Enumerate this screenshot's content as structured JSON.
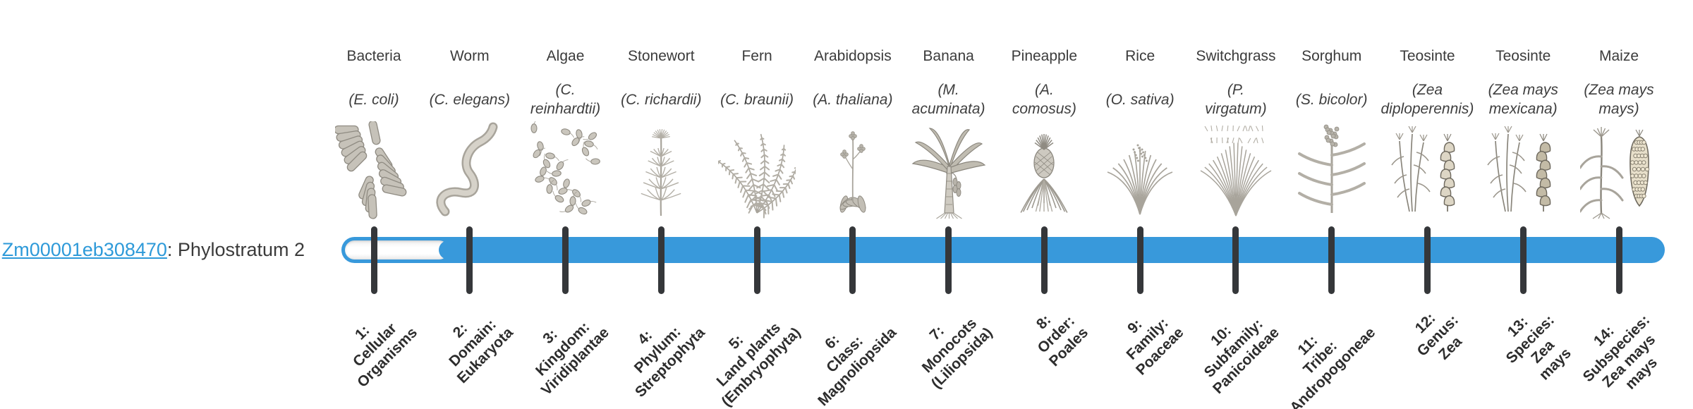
{
  "figure": {
    "type": "phylostratigraphy-timeline",
    "left_label": {
      "gene_id": "Zm00001eb308470",
      "suffix": ": Phylostratum 2",
      "full_text": "Zm00001eb308470: Phylostratum 2"
    },
    "phylostratum_value": 2,
    "colors": {
      "bar_blue": "#3899db",
      "groove_white": "#ffffff",
      "tick_dark": "#35373a",
      "link_blue": "#2e9ad9",
      "text_dark": "#3b3b3b",
      "icon_gray": "#c6c2b9",
      "icon_stroke": "#8f8b82",
      "icon_sepia": "#e7dfca"
    },
    "bar": {
      "strata_count": 14,
      "unfilled_before_stratum": 2,
      "filled_from_stratum": 2
    },
    "columns": [
      {
        "index": 1,
        "name": "Bacteria",
        "sci_lines": [
          "(E. coli)"
        ],
        "icon": "bacteria",
        "stratum_lines": [
          "1:",
          "Cellular",
          "Organisms"
        ]
      },
      {
        "index": 2,
        "name": "Worm",
        "sci_lines": [
          "(C. elegans)"
        ],
        "icon": "worm",
        "stratum_lines": [
          "2:",
          "Domain:",
          "Eukaryota"
        ]
      },
      {
        "index": 3,
        "name": "Algae",
        "sci_lines": [
          "(C.",
          "reinhardtii)"
        ],
        "icon": "algae",
        "stratum_lines": [
          "3:",
          "Kingdom:",
          "Viridiplantae"
        ]
      },
      {
        "index": 4,
        "name": "Stonewort",
        "sci_lines": [
          "(C. richardii)"
        ],
        "icon": "stonewort",
        "stratum_lines": [
          "4:",
          "Phylum:",
          "Streptophyta"
        ]
      },
      {
        "index": 5,
        "name": "Fern",
        "sci_lines": [
          "(C. braunii)"
        ],
        "icon": "fern",
        "stratum_lines": [
          "5:",
          "Land plants",
          "(Embryophyta)"
        ]
      },
      {
        "index": 6,
        "name": "Arabidopsis",
        "sci_lines": [
          "(A. thaliana)"
        ],
        "icon": "arabidopsis",
        "stratum_lines": [
          "6:",
          "Class:",
          "Magnoliopsida"
        ]
      },
      {
        "index": 7,
        "name": "Banana",
        "sci_lines": [
          "(M.",
          "acuminata)"
        ],
        "icon": "banana",
        "stratum_lines": [
          "7:",
          "Monocots",
          "(Liliopsida)"
        ]
      },
      {
        "index": 8,
        "name": "Pineapple",
        "sci_lines": [
          "(A.",
          "comosus)"
        ],
        "icon": "pineapple",
        "stratum_lines": [
          "8:",
          "Order:",
          "Poales"
        ]
      },
      {
        "index": 9,
        "name": "Rice",
        "sci_lines": [
          "(O. sativa)"
        ],
        "icon": "rice",
        "stratum_lines": [
          "9:",
          "Family:",
          "Poaceae"
        ]
      },
      {
        "index": 10,
        "name": "Switchgrass",
        "sci_lines": [
          "(P.",
          "virgatum)"
        ],
        "icon": "switchgrass",
        "stratum_lines": [
          "10:",
          "Subfamily:",
          "Panicoideae"
        ]
      },
      {
        "index": 11,
        "name": "Sorghum",
        "sci_lines": [
          "(S. bicolor)"
        ],
        "icon": "sorghum",
        "stratum_lines": [
          "11:",
          "Tribe:",
          "Andropogoneae"
        ]
      },
      {
        "index": 12,
        "name": "Teosinte",
        "sci_lines": [
          "(Zea",
          "diploperennis)"
        ],
        "icon": "teosinte-diploperennis",
        "stratum_lines": [
          "12:",
          "Genus:",
          "Zea"
        ]
      },
      {
        "index": 13,
        "name": "Teosinte",
        "sci_lines": [
          "(Zea mays",
          "mexicana)"
        ],
        "icon": "teosinte-mexicana",
        "stratum_lines": [
          "13:",
          "Species:",
          "Zea",
          "mays"
        ]
      },
      {
        "index": 14,
        "name": "Maize",
        "sci_lines": [
          "(Zea mays",
          "mays)"
        ],
        "icon": "maize",
        "stratum_lines": [
          "14:",
          "Subspecies:",
          "Zea mays",
          "mays"
        ]
      }
    ]
  }
}
